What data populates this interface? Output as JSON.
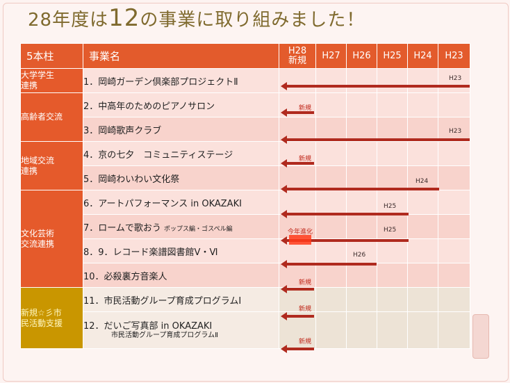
{
  "title": {
    "prefix": "28年度は",
    "number": "12",
    "suffix": "の事業に取り組みました！"
  },
  "header": {
    "pillar": "5本柱",
    "name": "事業名",
    "h28_line1": "H28",
    "h28_line2": "新規",
    "years": [
      "H27",
      "H26",
      "H25",
      "H24",
      "H23"
    ]
  },
  "pillars": {
    "p1": "大学学生連携",
    "p2": "高齢者交流",
    "p3": "地域交流連携",
    "p4": "文化芸術交流連携",
    "p5": "新規☆彡市民活動支援"
  },
  "projects": [
    {
      "no": "1．",
      "name": "岡崎ガーデン倶楽部プロジェクトⅡ",
      "start": "H23"
    },
    {
      "no": "2．",
      "name": "中高年のためのピアノサロン",
      "start": "新規"
    },
    {
      "no": "3．",
      "name": "岡崎歌声クラブ",
      "start": "H23"
    },
    {
      "no": "4．",
      "name": "京の七夕　コミュニティステージ",
      "start": "新規"
    },
    {
      "no": "5．",
      "name": "岡崎わいわい文化祭",
      "start": "H24"
    },
    {
      "no": "6．",
      "name": "アートパフォーマンス in OKAZAKI",
      "start": "H25"
    },
    {
      "no": "7．",
      "name": "ロームで歌おう",
      "name_small": "ポップス編・ゴスペル編",
      "start": "H25",
      "note": "今年進化"
    },
    {
      "no": "8．9．",
      "name": "レコード楽譜図書館Ⅴ・Ⅵ",
      "start": "H26"
    },
    {
      "no": "10．",
      "name": "必殺裏方音楽人",
      "start": "新規"
    },
    {
      "no": "11．",
      "name": "市民活動グループ育成プログラムⅠ",
      "start": "新規"
    },
    {
      "no": "12．",
      "name": "だいご写真部 in OKAZAKI",
      "name_sub": "市民活動グループ育成プログラムⅡ",
      "start": "新規"
    }
  ],
  "colors": {
    "header": "#e35b2c",
    "arrow": "#b02a1e",
    "new_pillar": "#c99600"
  }
}
